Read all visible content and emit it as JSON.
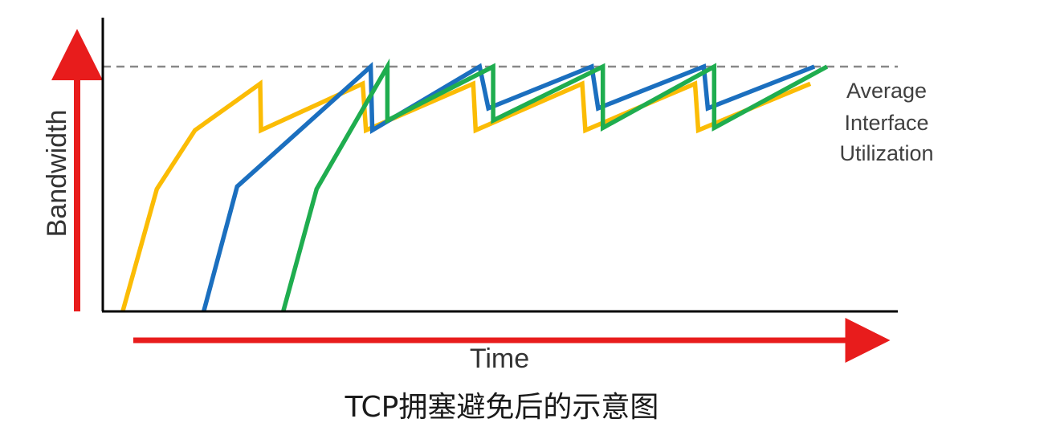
{
  "caption": "TCP拥塞避免后的示意图",
  "chart_data": {
    "type": "line",
    "title": "",
    "xlabel": "Time",
    "ylabel": "Bandwidth",
    "xlim": [
      0,
      100
    ],
    "ylim": [
      0,
      100
    ],
    "grid": false,
    "reference_line": {
      "label": "",
      "value": 100,
      "style": "dashed",
      "color": "#888888"
    },
    "annotation": [
      "Average",
      "Interface",
      "Utilization"
    ],
    "arrow_color": "#e81c1c",
    "series": [
      {
        "color": "#fbbc05",
        "x": [
          2.5,
          6.8,
          11.6,
          19.8,
          19.9,
          32.7,
          33.1,
          46.6,
          46.9,
          60.3,
          60.7,
          74.5,
          74.9,
          89.0
        ],
        "y": [
          0,
          50,
          74,
          93,
          74,
          93,
          74,
          93,
          74,
          93,
          74,
          93,
          74,
          93
        ]
      },
      {
        "color": "#1b6fbf",
        "x": [
          12.7,
          16.9,
          33.7,
          33.9,
          47.4,
          48.5,
          61.5,
          62.3,
          75.6,
          76.1,
          89.5
        ],
        "y": [
          0,
          51,
          100,
          74,
          100,
          83,
          100,
          83,
          100,
          83,
          100
        ]
      },
      {
        "color": "#1fad4f",
        "x": [
          22.7,
          26.9,
          35.8,
          35.8,
          49.1,
          49.1,
          62.9,
          62.9,
          76.9,
          76.9,
          91.1
        ],
        "y": [
          0,
          50,
          100,
          78,
          100,
          78,
          100,
          75,
          100,
          75,
          100
        ]
      }
    ]
  }
}
